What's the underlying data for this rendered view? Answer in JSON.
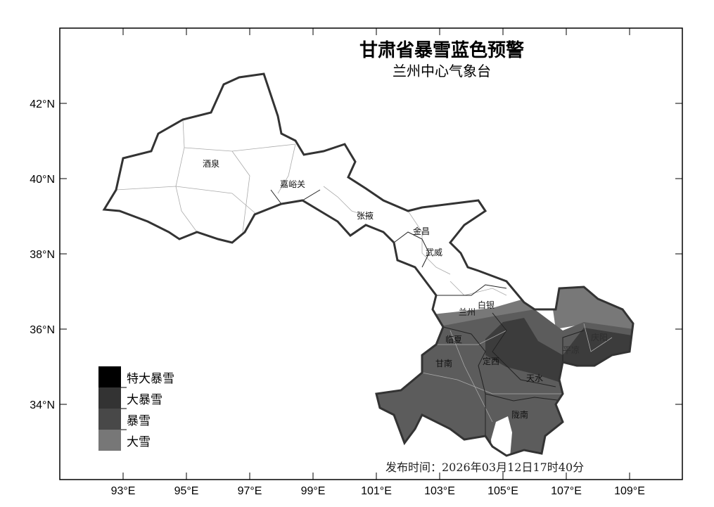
{
  "title": "甘肃省暴雪蓝色预警",
  "subtitle": "兰州中心气象台",
  "issue_time": "发布时间：2026年03月12日17时40分",
  "axes": {
    "lon_ticks": [
      "93°E",
      "95°E",
      "97°E",
      "99°E",
      "101°E",
      "103°E",
      "105°E",
      "107°E",
      "109°E"
    ],
    "lat_ticks": [
      "42°N",
      "40°N",
      "38°N",
      "36°N",
      "34°N"
    ]
  },
  "cities": [
    {
      "name": "酒泉"
    },
    {
      "name": "嘉峪关"
    },
    {
      "name": "张掖"
    },
    {
      "name": "金昌"
    },
    {
      "name": "武威"
    },
    {
      "name": "兰州"
    },
    {
      "name": "白银"
    },
    {
      "name": "临夏"
    },
    {
      "name": "甘南"
    },
    {
      "name": "定西"
    },
    {
      "name": "天水"
    },
    {
      "name": "陇南"
    },
    {
      "name": "平凉"
    },
    {
      "name": "庆阳"
    }
  ],
  "legend": [
    {
      "label": "特大暴雪",
      "color": "#000000"
    },
    {
      "label": "大暴雪",
      "color": "#333333"
    },
    {
      "label": "暴雪",
      "color": "#484848"
    },
    {
      "label": "大雪",
      "color": "#777777"
    }
  ],
  "colors": {
    "no_warning": "#ffffff",
    "heavy_snow": "#787878",
    "blizzard": "#5c5c5c",
    "severe_blizzard": "#3c3c3c"
  }
}
